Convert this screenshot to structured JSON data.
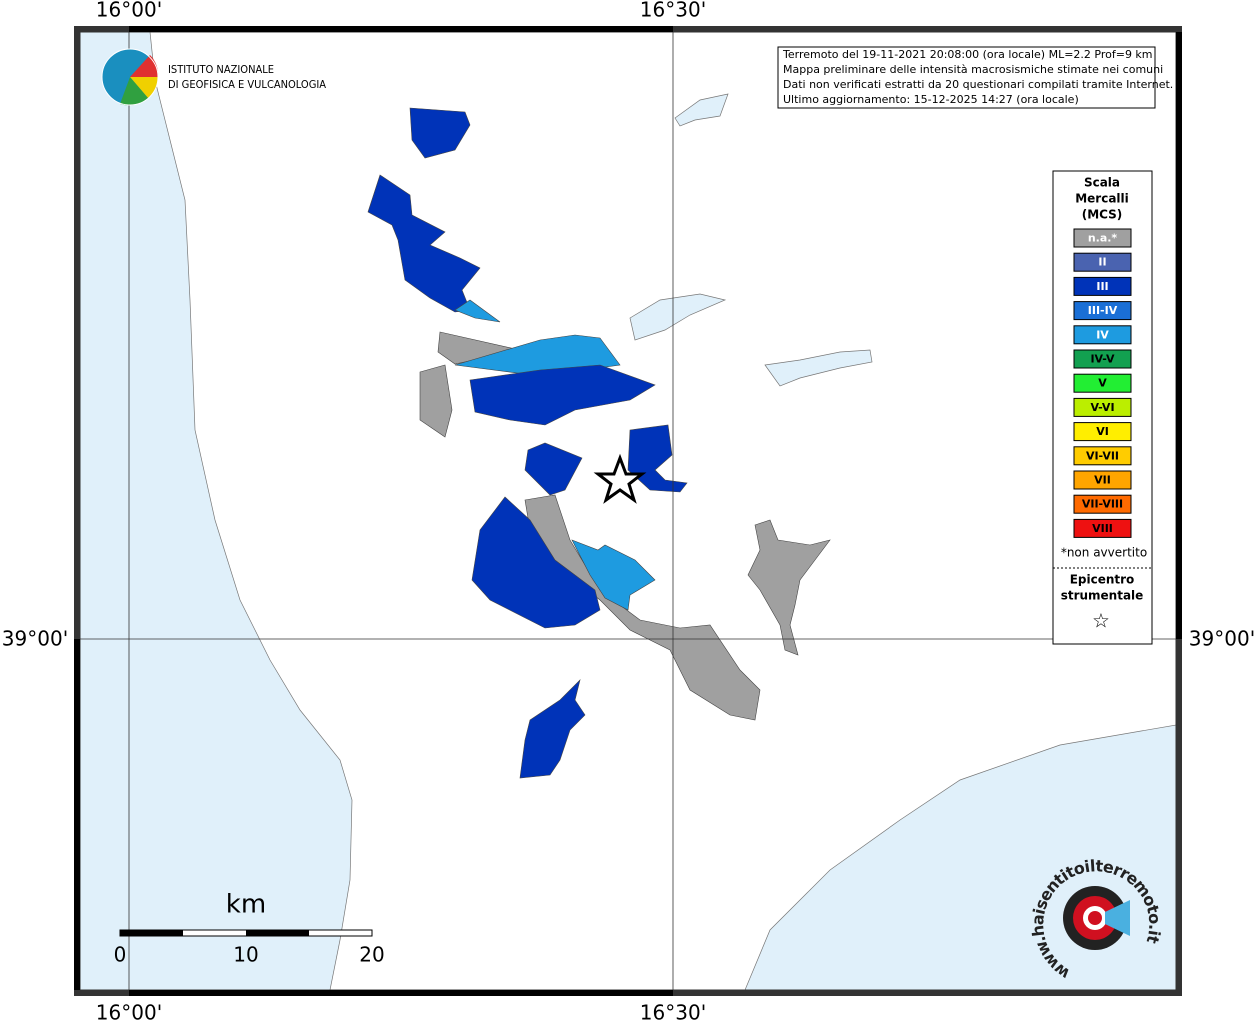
{
  "graticule": {
    "lon_labels": [
      "16°00'",
      "16°30'"
    ],
    "lat_labels": [
      "39°00'"
    ]
  },
  "logo": {
    "line1": "ISTITUTO NAZIONALE",
    "line2": "DI GEOFISICA E VULCANOLOGIA"
  },
  "info": {
    "lines": [
      "Terremoto del 19-11-2021 20:08:00 (ora locale) ML=2.2 Prof=9 km",
      "Mappa preliminare delle intensità macrosismiche stimate nei comuni",
      "Dati non verificati estratti da 20 questionari compilati tramite Internet.",
      "Ultimo aggiornamento: 15-12-2025 14:27 (ora locale)"
    ]
  },
  "legend": {
    "title": [
      "Scala",
      "Mercalli",
      "(MCS)"
    ],
    "items": [
      {
        "label": "n.a.*",
        "color": "#a0a0a0"
      },
      {
        "label": "II",
        "color": "#4a63b0"
      },
      {
        "label": "III",
        "color": "#0033b8"
      },
      {
        "label": "III-IV",
        "color": "#1a6fd6"
      },
      {
        "label": "IV",
        "color": "#1e9be0"
      },
      {
        "label": "IV-V",
        "color": "#12a050"
      },
      {
        "label": "V",
        "color": "#22ee33"
      },
      {
        "label": "V-VI",
        "color": "#bbee00"
      },
      {
        "label": "VI",
        "color": "#ffee00"
      },
      {
        "label": "VI-VII",
        "color": "#ffcc00"
      },
      {
        "label": "VII",
        "color": "#ffa500"
      },
      {
        "label": "VII-VIII",
        "color": "#ff6a00"
      },
      {
        "label": "VIII",
        "color": "#ee1111"
      }
    ],
    "note": "*non avvertito",
    "epicenter": [
      "Epicentro",
      "strumentale"
    ],
    "star": "☆"
  },
  "scale_bar": {
    "unit": "km",
    "labels": [
      "0",
      "10",
      "20"
    ]
  },
  "watermark": "www.haisentitoilterremoto.it"
}
